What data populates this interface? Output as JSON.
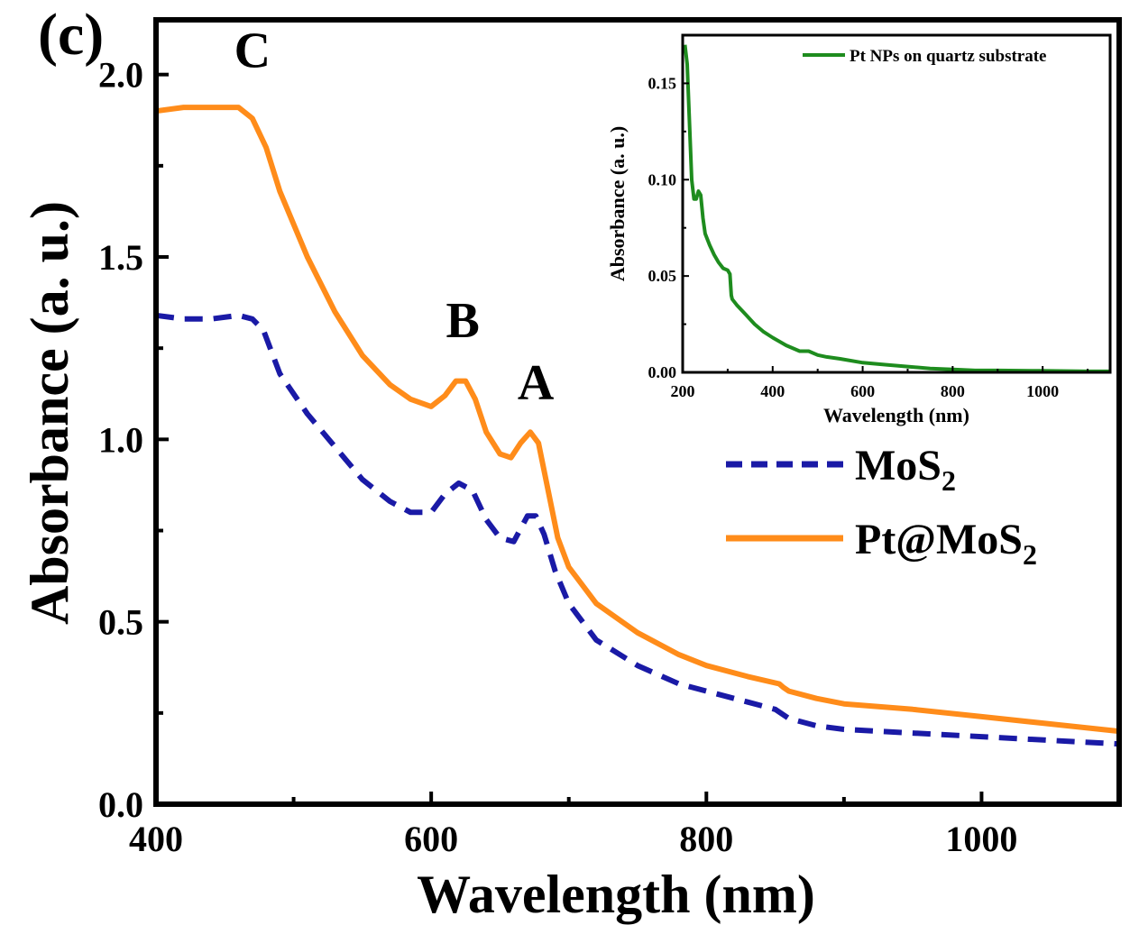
{
  "panel_label": "(c)",
  "colors": {
    "mos2": "#1a1aa6",
    "pt_mos2": "#ff8c1a",
    "pt_nps": "#1e8c1e"
  },
  "chart_data": [
    {
      "type": "line",
      "title": "",
      "xlabel": "Wavelength (nm)",
      "ylabel": "Absorbance (a. u.)",
      "xlim": [
        400,
        1100
      ],
      "ylim": [
        0,
        2.15
      ],
      "xticks": [
        400,
        600,
        800,
        1000
      ],
      "xtick_labels": [
        "400",
        "600",
        "800",
        "1000"
      ],
      "yticks": [
        0,
        0.5,
        1.0,
        1.5,
        2.0
      ],
      "ytick_labels": [
        "0.0",
        "0.5",
        "1.0",
        "1.5",
        "2.0"
      ],
      "legend": {
        "placement": "right",
        "entries": [
          {
            "series": "MoS2",
            "name": "MoS",
            "sub": "2"
          },
          {
            "series": "Pt@MoS2",
            "name": "Pt@MoS",
            "sub": "2"
          }
        ]
      },
      "annotations": [
        {
          "text": "C",
          "x": 470,
          "y": 2.02
        },
        {
          "text": "B",
          "x": 623,
          "y": 1.28
        },
        {
          "text": "A",
          "x": 676,
          "y": 1.11
        }
      ],
      "series": [
        {
          "name": "MoS2",
          "style": "dashed",
          "color": "#1a1aa6",
          "x": [
            400,
            420,
            440,
            460,
            470,
            478,
            490,
            510,
            530,
            550,
            570,
            585,
            600,
            610,
            620,
            630,
            640,
            650,
            660,
            670,
            676,
            682,
            690,
            700,
            720,
            750,
            780,
            800,
            830,
            850,
            856,
            860,
            880,
            900,
            950,
            1000,
            1050,
            1100
          ],
          "y": [
            1.34,
            1.33,
            1.33,
            1.34,
            1.33,
            1.3,
            1.18,
            1.07,
            0.98,
            0.89,
            0.83,
            0.8,
            0.8,
            0.85,
            0.88,
            0.86,
            0.78,
            0.73,
            0.72,
            0.79,
            0.79,
            0.74,
            0.64,
            0.55,
            0.45,
            0.38,
            0.33,
            0.31,
            0.28,
            0.26,
            0.245,
            0.235,
            0.215,
            0.205,
            0.195,
            0.185,
            0.175,
            0.165
          ]
        },
        {
          "name": "Pt@MoS2",
          "style": "solid",
          "color": "#ff8c1a",
          "x": [
            400,
            420,
            440,
            460,
            470,
            480,
            490,
            510,
            530,
            550,
            570,
            585,
            600,
            610,
            618,
            625,
            632,
            640,
            650,
            658,
            665,
            672,
            678,
            685,
            692,
            700,
            720,
            750,
            780,
            800,
            830,
            853,
            856,
            860,
            880,
            900,
            950,
            1000,
            1050,
            1100
          ],
          "y": [
            1.9,
            1.91,
            1.91,
            1.91,
            1.88,
            1.8,
            1.68,
            1.5,
            1.35,
            1.23,
            1.15,
            1.11,
            1.09,
            1.12,
            1.16,
            1.16,
            1.11,
            1.02,
            0.96,
            0.95,
            0.99,
            1.02,
            0.99,
            0.86,
            0.73,
            0.65,
            0.55,
            0.47,
            0.41,
            0.38,
            0.35,
            0.33,
            0.32,
            0.31,
            0.29,
            0.275,
            0.26,
            0.24,
            0.22,
            0.2
          ]
        }
      ]
    },
    {
      "type": "line",
      "title": "",
      "xlabel": "Wavelength (nm)",
      "ylabel": "Absorbance (a. u.)",
      "xlim": [
        200,
        1150
      ],
      "ylim": [
        0,
        0.175
      ],
      "xticks": [
        200,
        400,
        600,
        800,
        1000
      ],
      "xtick_labels": [
        "200",
        "400",
        "600",
        "800",
        "1000"
      ],
      "yticks": [
        0,
        0.05,
        0.1,
        0.15
      ],
      "ytick_labels": [
        "0.00",
        "0.05",
        "0.10",
        "0.15"
      ],
      "legend": {
        "placement": "top-right",
        "entries": [
          {
            "series": "Pt NPs on quartz substrate",
            "name": "Pt NPs on quartz substrate"
          }
        ]
      },
      "series": [
        {
          "name": "Pt NPs on quartz substrate",
          "style": "solid",
          "color": "#1e8c1e",
          "x": [
            205,
            210,
            215,
            220,
            225,
            230,
            235,
            240,
            245,
            250,
            260,
            270,
            280,
            290,
            300,
            305,
            308,
            310,
            320,
            340,
            360,
            380,
            400,
            430,
            460,
            480,
            500,
            520,
            550,
            600,
            650,
            700,
            750,
            800,
            850,
            900,
            1000,
            1100,
            1150
          ],
          "y": [
            0.17,
            0.16,
            0.13,
            0.1,
            0.09,
            0.09,
            0.094,
            0.092,
            0.08,
            0.072,
            0.066,
            0.061,
            0.057,
            0.054,
            0.053,
            0.051,
            0.04,
            0.038,
            0.035,
            0.03,
            0.025,
            0.021,
            0.018,
            0.014,
            0.011,
            0.011,
            0.009,
            0.008,
            0.007,
            0.005,
            0.004,
            0.003,
            0.002,
            0.0015,
            0.001,
            0.001,
            0.0008,
            0.0005,
            0.0005
          ]
        }
      ]
    }
  ]
}
